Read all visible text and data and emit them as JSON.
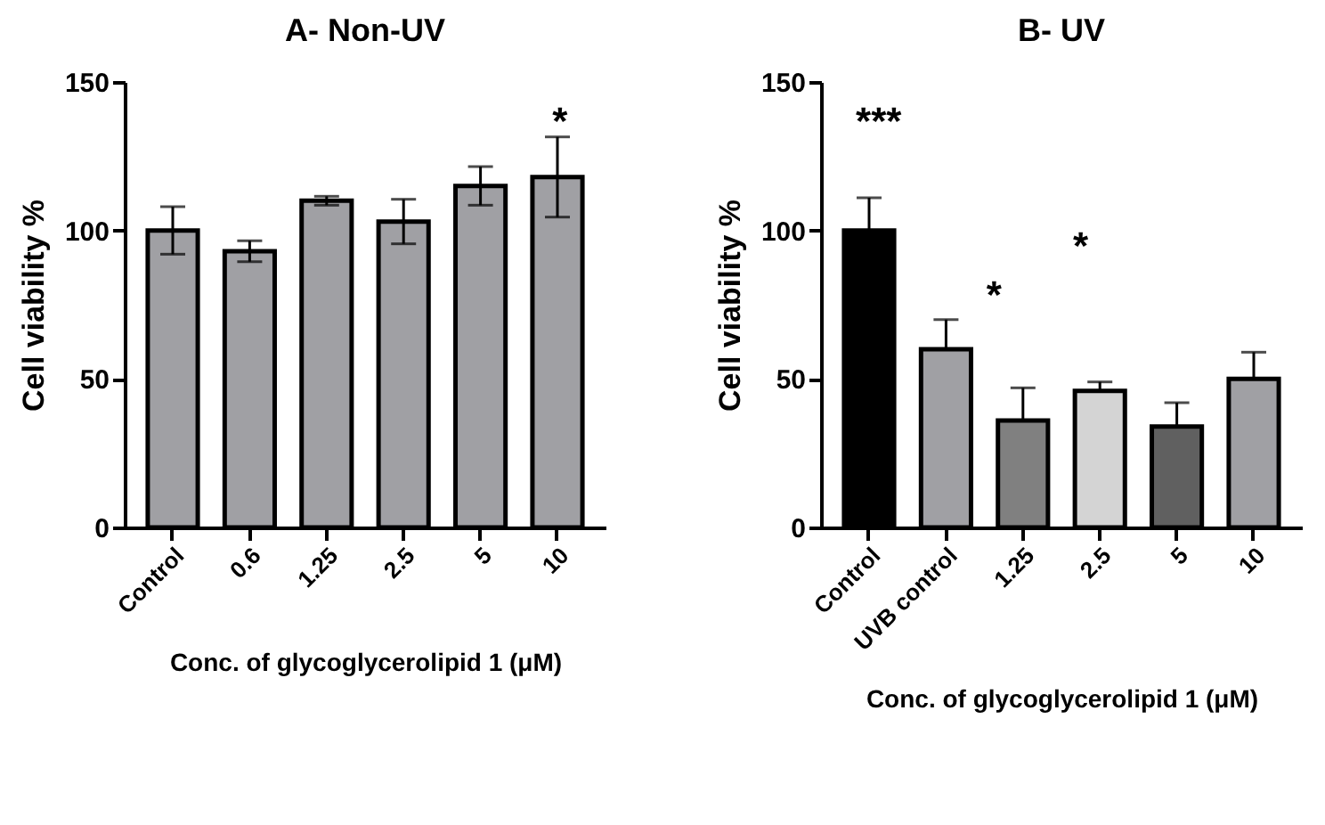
{
  "chart_data": [
    {
      "type": "bar",
      "title": "A- Non-UV",
      "xlabel": "Conc. of glycoglycerolipid 1 (μM)",
      "ylabel": "Cell viability %",
      "categories": [
        "Control",
        "0.6",
        "1.25",
        "2.5",
        "5",
        "10"
      ],
      "values": [
        100,
        93,
        110,
        103,
        115,
        118
      ],
      "errors": [
        8,
        3.5,
        1.5,
        7.5,
        6.5,
        13.5
      ],
      "color": "#a0a0a4",
      "ylim": [
        0,
        150
      ],
      "yticks": [
        0,
        50,
        100,
        150
      ],
      "grid": false,
      "annotations": [
        "*"
      ]
    },
    {
      "type": "bar",
      "title": "B- UV",
      "xlabel": "Conc. of glycoglycerolipid 1 (μM)",
      "ylabel": "Cell viability %",
      "categories": [
        "Control",
        "UVB control",
        "1.25",
        "2.5",
        "5",
        "10"
      ],
      "values": [
        100,
        60,
        36,
        46,
        34,
        50
      ],
      "errors": [
        [
          100,
          111
        ],
        [
          60,
          70
        ],
        [
          36,
          47
        ],
        [
          46,
          49
        ],
        [
          34,
          42
        ],
        [
          50,
          59
        ]
      ],
      "colors": [
        "#000000",
        "#a0a0a4",
        "#808080",
        "#d4d4d4",
        "#606060",
        "#a0a0a4"
      ],
      "ylim": [
        0,
        150
      ],
      "yticks": [
        0,
        50,
        100,
        150
      ],
      "grid": false,
      "annotations": [
        "***",
        "*",
        "*"
      ]
    }
  ]
}
